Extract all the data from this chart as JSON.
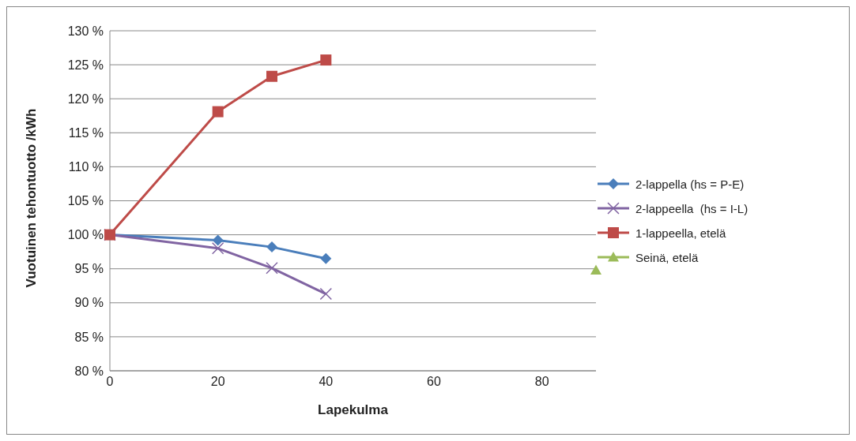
{
  "chart_data": {
    "type": "line",
    "xlabel": "Lapekulma",
    "ylabel": "Vuotuinen tehontuotto /kWh",
    "xlim": [
      0,
      90
    ],
    "xticks": [
      0,
      20,
      40,
      60,
      80
    ],
    "ylim": [
      80,
      130
    ],
    "yticks": [
      {
        "value": 80,
        "label": "80 %"
      },
      {
        "value": 85,
        "label": "85 %"
      },
      {
        "value": 90,
        "label": "90 %"
      },
      {
        "value": 95,
        "label": "95 %"
      },
      {
        "value": 100,
        "label": "100 %"
      },
      {
        "value": 105,
        "label": "105 %"
      },
      {
        "value": 110,
        "label": "110 %"
      },
      {
        "value": 115,
        "label": "115 %"
      },
      {
        "value": 120,
        "label": "120 %"
      },
      {
        "value": 125,
        "label": "125 %"
      },
      {
        "value": 130,
        "label": "130 %"
      }
    ],
    "grid": "y",
    "legend": "right",
    "series": [
      {
        "name": "2-lappella (hs = P-E)",
        "color": "#4a7ebb",
        "marker": "diamond",
        "x": [
          0,
          20,
          30,
          40
        ],
        "values": [
          100,
          99.2,
          98.2,
          96.5
        ]
      },
      {
        "name": "2-lappeella  (hs = I-L)",
        "color": "#8064a2",
        "marker": "cross",
        "x": [
          0,
          20,
          30,
          40
        ],
        "values": [
          100,
          98.0,
          95.1,
          91.3
        ]
      },
      {
        "name": "1-lappeella, etelä",
        "color": "#be4b48",
        "marker": "square",
        "x": [
          0,
          20,
          30,
          40
        ],
        "values": [
          100,
          118.1,
          123.3,
          125.7
        ]
      },
      {
        "name": "Seinä, etelä",
        "color": "#9bbb59",
        "marker": "triangle",
        "x": [
          90
        ],
        "values": [
          94.8
        ]
      }
    ]
  }
}
